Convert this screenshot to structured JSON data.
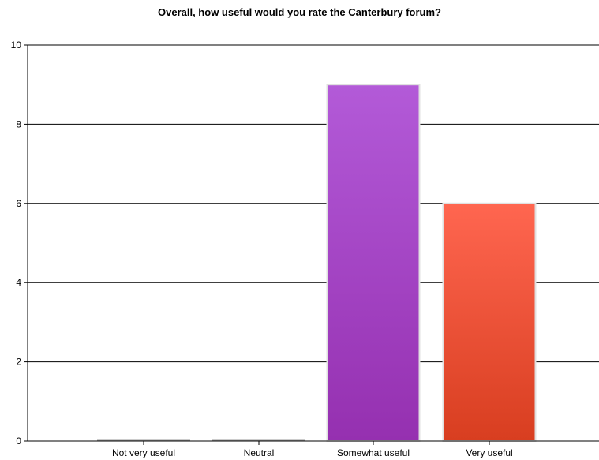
{
  "chart_data": {
    "type": "bar",
    "title": "Overall, how useful would you rate the Canterbury forum?",
    "xlabel": "",
    "ylabel": "",
    "categories": [
      "Not very useful",
      "Neutral",
      "Somewhat useful",
      "Very useful"
    ],
    "values": [
      0,
      0,
      9,
      6
    ],
    "ylim": [
      0,
      10
    ],
    "yticks": [
      0,
      2,
      4,
      6,
      8,
      10
    ],
    "grid": true,
    "legend": "none",
    "colors": [
      {
        "top": "#b35ad8",
        "bottom": "#9530b0"
      },
      {
        "top": "#b35ad8",
        "bottom": "#9530b0"
      },
      {
        "top": "#b35ad8",
        "bottom": "#9530b0"
      },
      {
        "top": "#ff6650",
        "bottom": "#d83e20"
      }
    ]
  }
}
